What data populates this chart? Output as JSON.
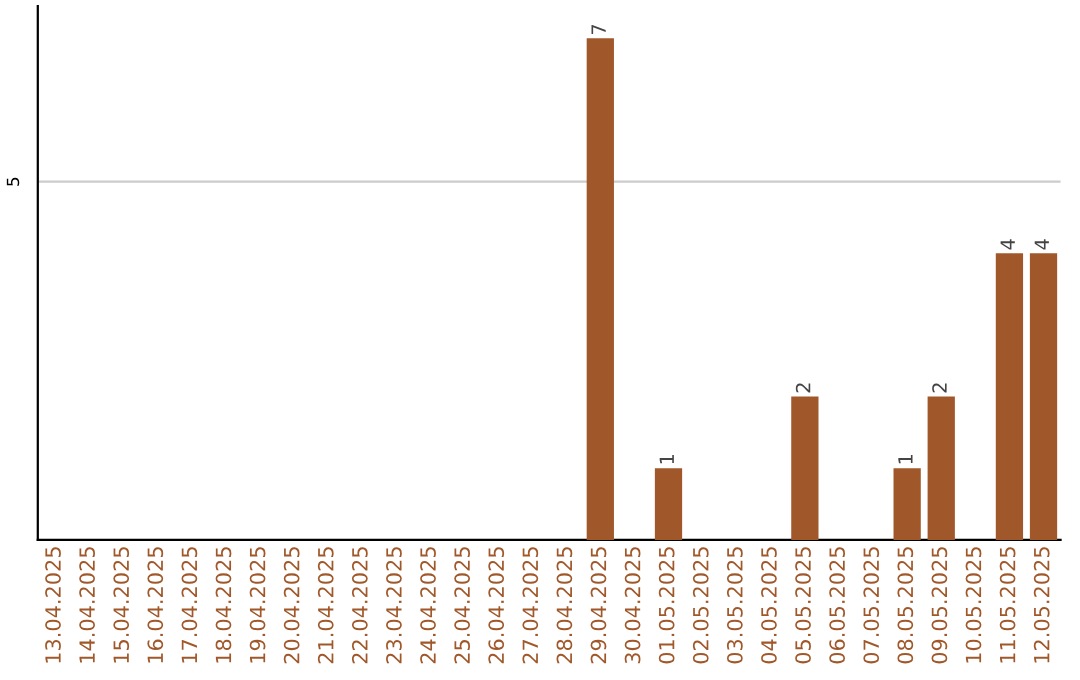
{
  "chart_data": {
    "type": "bar",
    "categories": [
      "13.04.2025",
      "14.04.2025",
      "15.04.2025",
      "16.04.2025",
      "17.04.2025",
      "18.04.2025",
      "19.04.2025",
      "20.04.2025",
      "21.04.2025",
      "22.04.2025",
      "23.04.2025",
      "24.04.2025",
      "25.04.2025",
      "26.04.2025",
      "27.04.2025",
      "28.04.2025",
      "29.04.2025",
      "30.04.2025",
      "01.05.2025",
      "02.05.2025",
      "03.05.2025",
      "04.05.2025",
      "05.05.2025",
      "06.05.2025",
      "07.05.2025",
      "08.05.2025",
      "09.05.2025",
      "10.05.2025",
      "11.05.2025",
      "12.05.2025"
    ],
    "values": [
      null,
      null,
      null,
      null,
      null,
      null,
      null,
      null,
      null,
      null,
      null,
      null,
      null,
      null,
      null,
      null,
      7,
      null,
      1,
      null,
      null,
      null,
      2,
      null,
      null,
      1,
      2,
      null,
      4,
      4
    ],
    "value_labels": [
      null,
      null,
      null,
      null,
      null,
      null,
      null,
      null,
      null,
      null,
      null,
      null,
      null,
      null,
      null,
      null,
      "7",
      null,
      "1",
      null,
      null,
      null,
      "2",
      null,
      null,
      "1",
      "2",
      null,
      "4",
      "4"
    ],
    "color": "#a0582a",
    "ylim": [
      0,
      7.45
    ],
    "ref_lines": [
      {
        "axis": "y",
        "value": 5,
        "label": "5",
        "color": "#cccccc"
      }
    ],
    "legend": false
  }
}
